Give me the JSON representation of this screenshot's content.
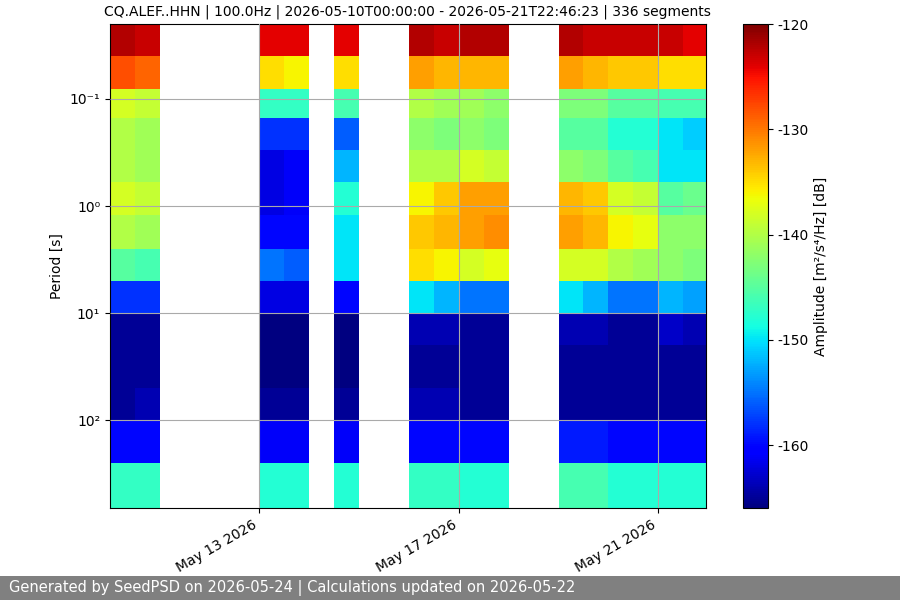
{
  "chart_data": {
    "type": "heatmap",
    "title": "CQ.ALEF..HHN | 100.0Hz | 2026-05-10T00:00:00 - 2026-05-21T22:46:23 | 336 segments",
    "y_label": "Period [s]",
    "footer": "Generated by SeedPSD on 2026-05-24 | Calculations updated on 2026-05-22",
    "log": "y",
    "grid": true,
    "xlim": [
      "2026-05-10T00:00:00",
      "2026-05-21T22:46:23"
    ],
    "xticks": [
      {
        "value": "2026-05-13T00:00:00",
        "label": "May 13 2026"
      },
      {
        "value": "2026-05-17T00:00:00",
        "label": "May 17 2026"
      },
      {
        "value": "2026-05-21T00:00:00",
        "label": "May 21 2026"
      }
    ],
    "ylim": [
      660,
      0.02
    ],
    "yticks": [
      {
        "value": 0.1,
        "label": "10⁻¹"
      },
      {
        "value": 1,
        "label": "10⁰"
      },
      {
        "value": 10,
        "label": "10¹"
      },
      {
        "value": 100,
        "label": "10²"
      }
    ],
    "x": [
      "2026-05-10T00:00:00",
      "2026-05-10T12:00:00",
      "2026-05-11T00:00:00",
      "2026-05-11T12:00:00",
      "2026-05-12T00:00:00",
      "2026-05-12T12:00:00",
      "2026-05-13T00:00:00",
      "2026-05-13T12:00:00",
      "2026-05-14T00:00:00",
      "2026-05-14T12:00:00",
      "2026-05-15T00:00:00",
      "2026-05-15T12:00:00",
      "2026-05-16T00:00:00",
      "2026-05-16T12:00:00",
      "2026-05-17T00:00:00",
      "2026-05-17T12:00:00",
      "2026-05-18T00:00:00",
      "2026-05-18T12:00:00",
      "2026-05-19T00:00:00",
      "2026-05-19T12:00:00",
      "2026-05-20T00:00:00",
      "2026-05-20T12:00:00",
      "2026-05-21T00:00:00",
      "2026-05-21T12:00:00",
      "2026-05-21T22:46:23"
    ],
    "y": [
      0.02,
      0.04,
      0.08,
      0.15,
      0.3,
      0.6,
      1.2,
      2.5,
      5,
      10,
      20,
      50,
      100,
      250,
      660
    ],
    "cells": [
      [
        -122,
        -123,
        null,
        null,
        null,
        null,
        -124,
        -124,
        null,
        -124,
        null,
        null,
        -122,
        -123,
        -122,
        -122,
        null,
        null,
        -122,
        -123,
        -123,
        -123,
        -123,
        -124
      ],
      [
        -128,
        -129,
        null,
        null,
        null,
        null,
        -135,
        -136,
        null,
        -135,
        null,
        null,
        -132,
        -133,
        -133,
        -133,
        null,
        null,
        -132,
        -133,
        -134,
        -134,
        -135,
        -135
      ],
      [
        -138,
        -139,
        null,
        null,
        null,
        null,
        -147,
        -147,
        null,
        -146,
        null,
        null,
        -140,
        -141,
        -141,
        -142,
        null,
        null,
        -143,
        -143,
        -145,
        -145,
        -146,
        -146
      ],
      [
        -140,
        -141,
        null,
        null,
        null,
        null,
        -158,
        -158,
        null,
        -156,
        null,
        null,
        -142,
        -143,
        -142,
        -143,
        null,
        null,
        -145,
        -145,
        -148,
        -148,
        -150,
        -151
      ],
      [
        -140,
        -141,
        null,
        null,
        null,
        null,
        -162,
        -161,
        null,
        -152,
        null,
        null,
        -140,
        -140,
        -138,
        -139,
        null,
        null,
        -142,
        -143,
        -145,
        -146,
        -150,
        -150
      ],
      [
        -138,
        -139,
        null,
        null,
        null,
        null,
        -162,
        -161,
        null,
        -148,
        null,
        null,
        -136,
        -134,
        -132,
        -132,
        null,
        null,
        -133,
        -134,
        -138,
        -139,
        -145,
        -144
      ],
      [
        -140,
        -141,
        null,
        null,
        null,
        null,
        -160,
        -160,
        null,
        -150,
        null,
        null,
        -134,
        -133,
        -132,
        -131,
        null,
        null,
        -132,
        -133,
        -136,
        -137,
        -142,
        -142
      ],
      [
        -145,
        -146,
        null,
        null,
        null,
        null,
        -155,
        -156,
        null,
        -150,
        null,
        null,
        -135,
        -136,
        -138,
        -137,
        null,
        null,
        -138,
        -138,
        -140,
        -141,
        -142,
        -143
      ],
      [
        -158,
        -158,
        null,
        null,
        null,
        null,
        -162,
        -162,
        null,
        -160,
        null,
        null,
        -150,
        -152,
        -155,
        -155,
        null,
        null,
        -150,
        -152,
        -155,
        -155,
        -152,
        -153
      ],
      [
        -165,
        -165,
        null,
        null,
        null,
        null,
        -166,
        -166,
        null,
        -166,
        null,
        null,
        -164,
        -164,
        -165,
        -165,
        null,
        null,
        -164,
        -164,
        -165,
        -165,
        -163,
        -164
      ],
      [
        -165,
        -165,
        null,
        null,
        null,
        null,
        -166,
        -166,
        null,
        -166,
        null,
        null,
        -165,
        -165,
        -165,
        -165,
        null,
        null,
        -165,
        -165,
        -165,
        -165,
        -165,
        -165
      ],
      [
        -165,
        -164,
        null,
        null,
        null,
        null,
        -165,
        -165,
        null,
        -165,
        null,
        null,
        -164,
        -164,
        -165,
        -165,
        null,
        null,
        -165,
        -165,
        -165,
        -165,
        -165,
        -165
      ],
      [
        -160,
        -160,
        null,
        null,
        null,
        null,
        -161,
        -161,
        null,
        -161,
        null,
        null,
        -160,
        -160,
        -160,
        -160,
        null,
        null,
        -159,
        -159,
        -160,
        -160,
        -160,
        -160
      ],
      [
        -147,
        -147,
        null,
        null,
        null,
        null,
        -148,
        -148,
        null,
        -148,
        null,
        null,
        -147,
        -147,
        -148,
        -148,
        null,
        null,
        -146,
        -146,
        -148,
        -148,
        -148,
        -148
      ]
    ],
    "colorbar": {
      "range": [
        -166,
        -120
      ],
      "ticks": [
        -160,
        -150,
        -140,
        -130,
        -120
      ],
      "label": "Amplitude [m²/s⁴/Hz] [dB]"
    }
  }
}
